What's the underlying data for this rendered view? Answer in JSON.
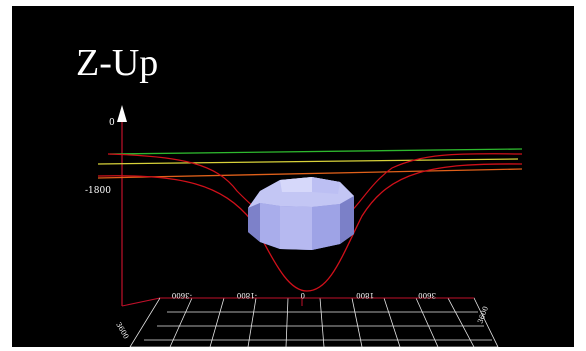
{
  "scene": {
    "title": "Z-Up",
    "z_axis_ticks": [
      "0",
      "-1800"
    ],
    "x_axis_ticks": [
      "-3600",
      "-1800",
      "0",
      "1800",
      "3600"
    ],
    "corner_labels": [
      "3600",
      "3600"
    ],
    "colors": {
      "background": "#000000",
      "axes": "#c0102a",
      "grid": "#ffffff",
      "red_curve": "#d0101a",
      "green_line": "#2eb82e",
      "yellow_line": "#d8d23a",
      "orange_line": "#e0601a",
      "object": "#9ea3e6"
    },
    "object_shape": "faceted-dome"
  }
}
